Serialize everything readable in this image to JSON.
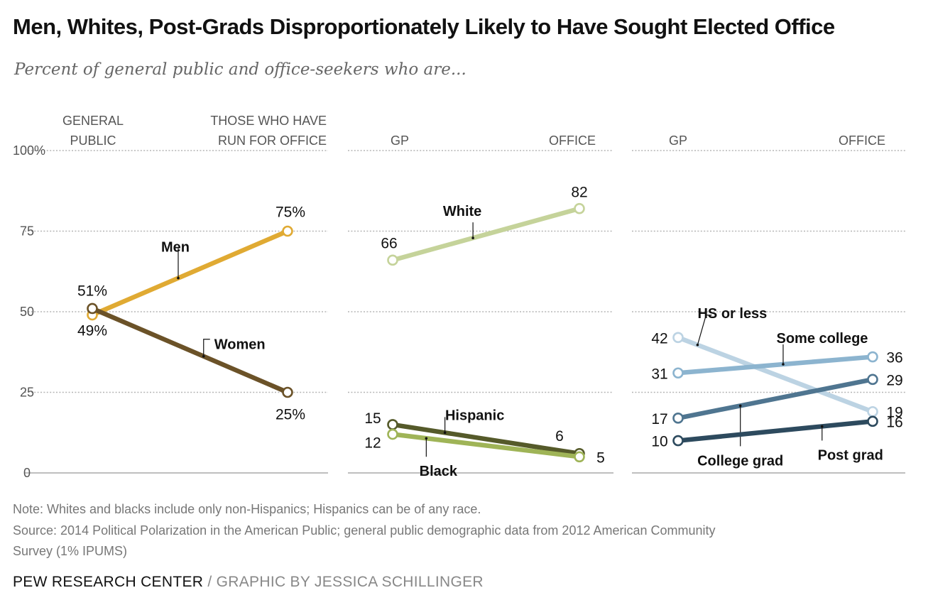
{
  "title": "Men, Whites, Post-Grads Disproportionately Likely to Have Sought Elected Office",
  "subtitle": "Percent of general public and office-seekers who are...",
  "notes": {
    "note": "Note: Whites and blacks include only non-Hispanics; Hispanics can be of any race.",
    "source_line1": "Source: 2014 Political Polarization in the American Public; general public demographic data from 2012 American Community",
    "source_line2": "Survey (1% IPUMS)"
  },
  "footer": {
    "org": "PEW RESEARCH CENTER",
    "separator": " / ",
    "credit": "GRAPHIC BY JESSICA SCHILLINGER"
  },
  "chart_data": [
    {
      "type": "line",
      "panel": "gender",
      "x_labels": [
        "GENERAL PUBLIC",
        "THOSE WHO HAVE RUN FOR OFFICE"
      ],
      "ylim": [
        0,
        100
      ],
      "yticks": [
        {
          "value": 0,
          "label": "0"
        },
        {
          "value": 25,
          "label": "25"
        },
        {
          "value": 50,
          "label": "50"
        },
        {
          "value": 75,
          "label": "75"
        },
        {
          "value": 100,
          "label": "100%"
        }
      ],
      "series": [
        {
          "name": "Men",
          "values": [
            49,
            75
          ],
          "labels": [
            "49%",
            "75%"
          ],
          "color": "#e0aa33"
        },
        {
          "name": "Women",
          "values": [
            51,
            25
          ],
          "labels": [
            "51%",
            "25%"
          ],
          "color": "#6b5228"
        }
      ]
    },
    {
      "type": "line",
      "panel": "race",
      "x_labels": [
        "GP",
        "OFFICE"
      ],
      "ylim": [
        0,
        100
      ],
      "series": [
        {
          "name": "White",
          "values": [
            66,
            82
          ],
          "labels": [
            "66",
            "82"
          ],
          "color": "#c5d39a"
        },
        {
          "name": "Hispanic",
          "values": [
            15,
            6
          ],
          "labels": [
            "15",
            "6"
          ],
          "color": "#555a2a"
        },
        {
          "name": "Black",
          "values": [
            12,
            5
          ],
          "labels": [
            "12",
            "5"
          ],
          "color": "#9fb457"
        }
      ]
    },
    {
      "type": "line",
      "panel": "education",
      "x_labels": [
        "GP",
        "OFFICE"
      ],
      "ylim": [
        0,
        100
      ],
      "series": [
        {
          "name": "HS or less",
          "values": [
            42,
            19
          ],
          "labels": [
            "42",
            "19"
          ],
          "color": "#bcd3e3"
        },
        {
          "name": "Some college",
          "values": [
            31,
            36
          ],
          "labels": [
            "31",
            "36"
          ],
          "color": "#8cb4cf"
        },
        {
          "name": "College grad",
          "values": [
            17,
            29
          ],
          "labels": [
            "17",
            "29"
          ],
          "color": "#4f7590"
        },
        {
          "name": "Post grad",
          "values": [
            10,
            16
          ],
          "labels": [
            "10",
            "16"
          ],
          "color": "#2d4a5e"
        }
      ]
    }
  ]
}
